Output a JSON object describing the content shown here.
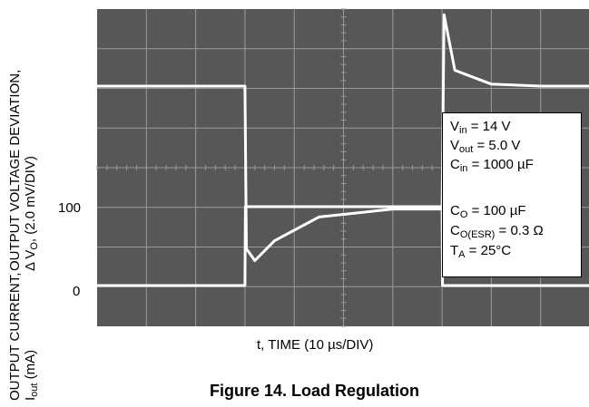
{
  "chart_data": {
    "type": "line",
    "title": "Figure 14. Load Regulation",
    "xlabel": "t, TIME (10 µs/DIV)",
    "x_units_per_div": "10 µs",
    "x_divisions": 10,
    "ylabel_top": {
      "line1": "OUTPUT VOLTAGE DEVIATION,",
      "line2_prefix": "Δ V",
      "line2_sub": "O",
      "line2_suffix": ", (2.0 mV/DIV)"
    },
    "ylabel_bottom": {
      "line1": "OUTPUT CURRENT,",
      "line2_prefix": "I",
      "line2_sub": "out",
      "line2_suffix": " (mA)"
    },
    "current_ticks": [
      "100",
      "0"
    ],
    "background_color": "#575757",
    "grid_color": "#9a9a9a",
    "trace_color": "#ffffff",
    "series": [
      {
        "name": "",
        "quantity": "output voltage deviation",
        "unit": "mV",
        "x_us": [
          0,
          30,
          30.3,
          32,
          36,
          45,
          60,
          70,
          70.4,
          72.6,
          80,
          90,
          100
        ],
        "y": [
          0,
          0,
          -8.2,
          -8.8,
          -7.8,
          -6.6,
          -6.2,
          -6.2,
          3.6,
          0.8,
          0.1,
          0,
          0
        ]
      },
      {
        "name": "",
        "quantity": "output current",
        "unit": "mA",
        "x_us": [
          0,
          30,
          30.1,
          70,
          70.1,
          100
        ],
        "y": [
          0,
          0,
          100,
          100,
          0,
          0
        ]
      }
    ],
    "annotations": [
      {
        "base": "V",
        "sub": "in",
        "rest": " = 14 V"
      },
      {
        "base": "V",
        "sub": "out",
        "rest": " = 5.0 V"
      },
      {
        "base": "C",
        "sub": "in",
        "rest": " = 1000 µF"
      },
      {
        "base": "C",
        "sub": "O",
        "rest": " = 100 µF"
      },
      {
        "base": "C",
        "sub": "O(ESR)",
        "rest": " = 0.3 Ω"
      },
      {
        "base": "T",
        "sub": "A",
        "rest": " = 25°C"
      }
    ]
  }
}
